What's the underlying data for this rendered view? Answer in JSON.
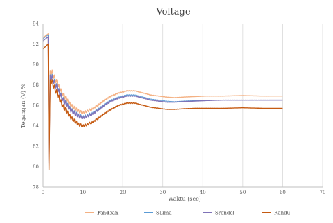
{
  "chart_data": {
    "type": "line",
    "title": "Voltage",
    "xlabel": "Waktu (sec)",
    "ylabel": "Tegangan (V) %",
    "xlim": [
      0,
      70
    ],
    "ylim": [
      78,
      94
    ],
    "xticks": [
      "0",
      "10",
      "20",
      "30",
      "40",
      "50",
      "60",
      "70"
    ],
    "yticks": [
      "78",
      "80",
      "82",
      "84",
      "86",
      "88",
      "90",
      "92",
      "94"
    ],
    "grid": "vertical",
    "legend_position": "bottom",
    "series": [
      {
        "name": "Pandean",
        "color": "#f4b183",
        "width": 1.4,
        "initial": [
          [
            0,
            92.6
          ],
          [
            1.3,
            93.0
          ]
        ],
        "drop": 80.6,
        "peak": 89.4,
        "x": [
          2,
          3,
          5,
          7,
          9,
          10,
          11,
          13,
          15,
          17,
          19,
          21,
          22,
          23,
          25,
          27,
          29,
          31,
          33,
          35,
          38,
          41,
          45,
          50,
          55,
          60
        ],
        "y": [
          89.4,
          88.6,
          87.0,
          86.0,
          85.4,
          85.3,
          85.4,
          85.8,
          86.4,
          86.9,
          87.2,
          87.4,
          87.4,
          87.4,
          87.2,
          87.0,
          86.9,
          86.8,
          86.75,
          86.8,
          86.85,
          86.9,
          86.9,
          86.95,
          86.9,
          86.9
        ]
      },
      {
        "name": "SLima",
        "color": "#5b9bd5",
        "width": 1.0,
        "initial": [
          [
            0,
            92.5
          ],
          [
            1.3,
            92.9
          ]
        ],
        "drop": 80.2,
        "peak": 89.0,
        "x": [
          2,
          3,
          5,
          7,
          9,
          10,
          11,
          13,
          15,
          17,
          19,
          21,
          22,
          23,
          25,
          27,
          29,
          31,
          33,
          35,
          38,
          41,
          45,
          50,
          55,
          60
        ],
        "y": [
          89.0,
          88.2,
          86.6,
          85.6,
          85.0,
          84.9,
          85.0,
          85.4,
          86.0,
          86.5,
          86.8,
          87.0,
          87.0,
          87.0,
          86.8,
          86.6,
          86.5,
          86.4,
          86.35,
          86.4,
          86.45,
          86.5,
          86.5,
          86.5,
          86.5,
          86.5
        ]
      },
      {
        "name": "Srondol",
        "color": "#7f73b8",
        "width": 1.4,
        "initial": [
          [
            0,
            92.3
          ],
          [
            1.3,
            92.7
          ]
        ],
        "drop": 80.3,
        "peak": 88.9,
        "x": [
          2,
          3,
          5,
          7,
          9,
          10,
          11,
          13,
          15,
          17,
          19,
          21,
          22,
          23,
          25,
          27,
          29,
          31,
          33,
          35,
          38,
          41,
          45,
          50,
          55,
          60
        ],
        "y": [
          88.9,
          88.1,
          86.5,
          85.5,
          84.9,
          84.8,
          84.9,
          85.3,
          85.9,
          86.4,
          86.7,
          86.9,
          86.9,
          86.9,
          86.7,
          86.5,
          86.4,
          86.3,
          86.3,
          86.35,
          86.4,
          86.45,
          86.5,
          86.5,
          86.5,
          86.5
        ]
      },
      {
        "name": "Randu",
        "color": "#c55a11",
        "width": 1.4,
        "initial": [
          [
            0,
            91.5
          ],
          [
            1.3,
            92.0
          ]
        ],
        "drop": 79.7,
        "peak": 88.5,
        "x": [
          2,
          3,
          5,
          7,
          9,
          10,
          11,
          13,
          15,
          17,
          19,
          21,
          22,
          23,
          25,
          27,
          29,
          31,
          33,
          35,
          38,
          41,
          45,
          50,
          55,
          60
        ],
        "y": [
          88.5,
          87.6,
          85.9,
          84.8,
          84.1,
          84.0,
          84.1,
          84.5,
          85.1,
          85.6,
          86.0,
          86.2,
          86.2,
          86.2,
          86.0,
          85.8,
          85.7,
          85.6,
          85.6,
          85.65,
          85.7,
          85.7,
          85.7,
          85.75,
          85.7,
          85.7
        ]
      }
    ]
  }
}
